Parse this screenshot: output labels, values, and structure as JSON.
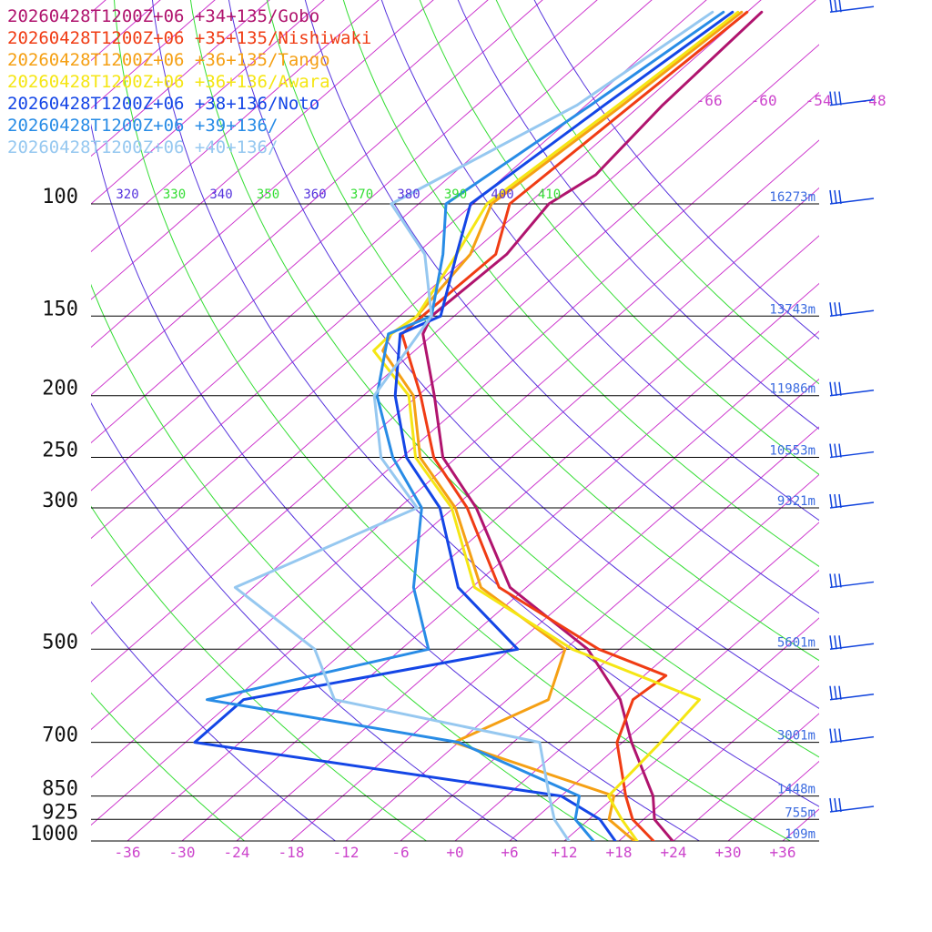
{
  "colors": {
    "isotherm": "#cc33cc",
    "dry_adiabat_a": "#5533dd",
    "dry_adiabat_b": "#33dd33",
    "isobar": "#000000",
    "barb": "#1144dd"
  },
  "chart_data": {
    "type": "line",
    "title": "",
    "xlabel": "",
    "ylabel": "",
    "x_unit": "°C",
    "xlim": [
      -40,
      40
    ],
    "skew_degrees_per_decade": 80,
    "pressure_levels": [
      100,
      150,
      200,
      250,
      300,
      500,
      700,
      850,
      925,
      1000
    ],
    "pressure_labels": [
      "100",
      "150",
      "200",
      "250",
      "300",
      "500",
      "700",
      "850",
      "925",
      "1000"
    ],
    "heights": [
      {
        "p": 100,
        "label": "16273m"
      },
      {
        "p": 150,
        "label": "13743m"
      },
      {
        "p": 200,
        "label": "11986m"
      },
      {
        "p": 250,
        "label": "10553m"
      },
      {
        "p": 300,
        "label": "9321m"
      },
      {
        "p": 500,
        "label": "5601m"
      },
      {
        "p": 700,
        "label": "3001m"
      },
      {
        "p": 850,
        "label": "1448m"
      },
      {
        "p": 925,
        "label": "755m"
      },
      {
        "p": 1000,
        "label": "109m"
      }
    ],
    "bottom_ticks": [
      {
        "t": -36,
        "label": "-36"
      },
      {
        "t": -30,
        "label": "-30"
      },
      {
        "t": -24,
        "label": "-24"
      },
      {
        "t": -18,
        "label": "-18"
      },
      {
        "t": -12,
        "label": "-12"
      },
      {
        "t": -6,
        "label": "-6"
      },
      {
        "t": 0,
        "label": "+0"
      },
      {
        "t": 6,
        "label": "+6"
      },
      {
        "t": 12,
        "label": "+12"
      },
      {
        "t": 18,
        "label": "+18"
      },
      {
        "t": 24,
        "label": "+24"
      },
      {
        "t": 30,
        "label": "+30"
      },
      {
        "t": 36,
        "label": "+36"
      }
    ],
    "upper_isotherm_labels": [
      {
        "t": -66,
        "label": "-66"
      },
      {
        "t": -60,
        "label": "-60"
      },
      {
        "t": -54,
        "label": "-54"
      },
      {
        "t": -48,
        "label": "-48"
      }
    ],
    "theta_levels": [
      320,
      330,
      340,
      350,
      360,
      370,
      380,
      390,
      400,
      410
    ],
    "theta_labels": [
      "320",
      "330",
      "340",
      "350",
      "360",
      "370",
      "380",
      "390",
      "400",
      "410"
    ],
    "series": [
      {
        "name": "20260428T1200Z+06 +34+135/Gobo",
        "color": "#b0146e",
        "points": [
          [
            1000,
            23.9
          ],
          [
            925,
            19.2
          ],
          [
            850,
            16.1
          ],
          [
            700,
            7.0
          ],
          [
            600,
            0.4
          ],
          [
            500,
            -9.5
          ],
          [
            400,
            -25.8
          ],
          [
            300,
            -39.5
          ],
          [
            250,
            -49.5
          ],
          [
            200,
            -58.2
          ],
          [
            160,
            -67.2
          ],
          [
            150,
            -68.5
          ],
          [
            120,
            -68.0
          ],
          [
            100,
            -69.7
          ],
          [
            90,
            -68.2
          ],
          [
            70,
            -69.6
          ],
          [
            50,
            -70.4
          ]
        ]
      },
      {
        "name": "20260428T1200Z+06 +35+135/Nishiwaki",
        "color": "#f03c14",
        "points": [
          [
            1000,
            21.8
          ],
          [
            925,
            16.8
          ],
          [
            850,
            13.1
          ],
          [
            700,
            5.4
          ],
          [
            600,
            1.8
          ],
          [
            550,
            2.4
          ],
          [
            500,
            -8.3
          ],
          [
            400,
            -27.0
          ],
          [
            300,
            -40.5
          ],
          [
            250,
            -50.5
          ],
          [
            200,
            -59.7
          ],
          [
            160,
            -69.5
          ],
          [
            150,
            -69.5
          ],
          [
            120,
            -69.2
          ],
          [
            100,
            -74.0
          ],
          [
            70,
            -73.0
          ],
          [
            50,
            -72.0
          ]
        ]
      },
      {
        "name": "20260428T1200Z+06 +36+135/Tango",
        "color": "#f5a014",
        "points": [
          [
            1000,
            19.7
          ],
          [
            925,
            14.2
          ],
          [
            850,
            11.8
          ],
          [
            700,
            -12.5
          ],
          [
            600,
            -7.5
          ],
          [
            500,
            -12.0
          ],
          [
            400,
            -29.0
          ],
          [
            300,
            -41.8
          ],
          [
            250,
            -52.0
          ],
          [
            200,
            -60.5
          ],
          [
            170,
            -69.5
          ],
          [
            160,
            -70.7
          ],
          [
            150,
            -70.1
          ],
          [
            120,
            -72.0
          ],
          [
            100,
            -76.0
          ],
          [
            70,
            -74.0
          ],
          [
            50,
            -72.6
          ]
        ]
      },
      {
        "name": "20260428T1200Z+06 +36+136/Awara",
        "color": "#f5e614",
        "points": [
          [
            1000,
            20.0
          ],
          [
            925,
            15.6
          ],
          [
            850,
            11.2
          ],
          [
            700,
            10.2
          ],
          [
            600,
            9.1
          ],
          [
            500,
            -11.2
          ],
          [
            400,
            -29.7
          ],
          [
            300,
            -42.2
          ],
          [
            250,
            -52.5
          ],
          [
            200,
            -61.0
          ],
          [
            170,
            -70.5
          ],
          [
            160,
            -70.7
          ],
          [
            150,
            -70.1
          ],
          [
            120,
            -73.5
          ],
          [
            100,
            -76.5
          ],
          [
            70,
            -74.5
          ],
          [
            50,
            -73.0
          ]
        ]
      },
      {
        "name": "20260428T1200Z+06 +38+136/Noto",
        "color": "#1446e6",
        "points": [
          [
            1000,
            17.6
          ],
          [
            925,
            13.2
          ],
          [
            850,
            6.0
          ],
          [
            700,
            -41.0
          ],
          [
            600,
            -41.0
          ],
          [
            500,
            -17.2
          ],
          [
            400,
            -31.5
          ],
          [
            300,
            -43.5
          ],
          [
            250,
            -53.5
          ],
          [
            200,
            -62.5
          ],
          [
            160,
            -69.7
          ],
          [
            150,
            -67.5
          ],
          [
            120,
            -73.5
          ],
          [
            100,
            -78.3
          ],
          [
            70,
            -76.0
          ],
          [
            50,
            -73.6
          ]
        ]
      },
      {
        "name": "20260428T1200Z+06 +39+136/",
        "color": "#288ce6",
        "points": [
          [
            1000,
            15.2
          ],
          [
            925,
            10.5
          ],
          [
            850,
            8.0
          ],
          [
            700,
            -12.0
          ],
          [
            600,
            -45.0
          ],
          [
            500,
            -27.0
          ],
          [
            400,
            -36.4
          ],
          [
            300,
            -45.5
          ],
          [
            250,
            -55.0
          ],
          [
            200,
            -64.5
          ],
          [
            160,
            -71.0
          ],
          [
            150,
            -68.5
          ],
          [
            120,
            -75.0
          ],
          [
            100,
            -81.0
          ],
          [
            70,
            -77.5
          ],
          [
            50,
            -74.6
          ]
        ]
      },
      {
        "name": "20260428T1200Z+06 +40+136/",
        "color": "#96c8f0",
        "points": [
          [
            1000,
            12.5
          ],
          [
            925,
            8.2
          ],
          [
            850,
            4.7
          ],
          [
            700,
            -3.1
          ],
          [
            600,
            -31.0
          ],
          [
            500,
            -39.5
          ],
          [
            400,
            -56.0
          ],
          [
            300,
            -46.0
          ],
          [
            250,
            -56.3
          ],
          [
            200,
            -64.8
          ],
          [
            150,
            -68.5
          ],
          [
            120,
            -77.0
          ],
          [
            100,
            -87.0
          ],
          [
            70,
            -79.0
          ],
          [
            50,
            -75.8
          ]
        ]
      }
    ]
  },
  "wind_barbs": [
    {
      "p": 50
    },
    {
      "p": 70
    },
    {
      "p": 100
    },
    {
      "p": 150
    },
    {
      "p": 200
    },
    {
      "p": 250
    },
    {
      "p": 300
    },
    {
      "p": 400
    },
    {
      "p": 500
    },
    {
      "p": 600
    },
    {
      "p": 700
    },
    {
      "p": 900
    }
  ]
}
